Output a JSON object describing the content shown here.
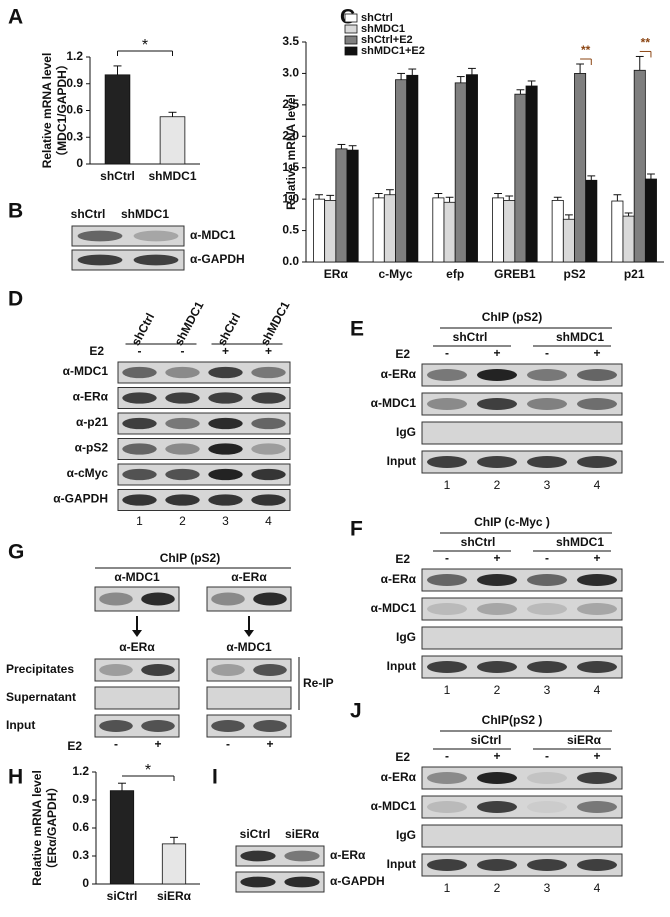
{
  "panel_letters": [
    "A",
    "B",
    "C",
    "D",
    "E",
    "F",
    "G",
    "H",
    "I",
    "J"
  ],
  "chart_data": [
    {
      "type": "bar",
      "y_label": [
        "Relative mRNA level",
        "（MDC1/GAPDH）"
      ],
      "categories": [
        "shCtrl",
        "shMDC1"
      ],
      "values": [
        1.0,
        0.53
      ],
      "errors": [
        0.1,
        0.05
      ],
      "colors": [
        "#222222",
        "#e6e6e6"
      ],
      "ylim": [
        0,
        1.2
      ],
      "yticks": [
        0,
        0.3,
        0.6,
        0.9,
        1.2
      ],
      "annotations": [
        "*"
      ]
    },
    {
      "type": "bar",
      "y_label": [
        "Relative mRNA level"
      ],
      "categories": [
        "ERα",
        "c-Myc",
        "efp",
        "GREB1",
        "pS2",
        "p21"
      ],
      "series": [
        {
          "name": "shCtrl",
          "color": "#ffffff",
          "values": [
            1.0,
            1.02,
            1.02,
            1.02,
            0.98,
            0.97
          ],
          "errors": [
            0.07,
            0.07,
            0.07,
            0.07,
            0.05,
            0.1
          ]
        },
        {
          "name": "shMDC1",
          "color": "#d9d9d9",
          "values": [
            0.98,
            1.07,
            0.95,
            0.98,
            0.68,
            0.73
          ],
          "errors": [
            0.08,
            0.08,
            0.08,
            0.07,
            0.07,
            0.05
          ]
        },
        {
          "name": "shCtrl+E2",
          "color": "#7f7f7f",
          "values": [
            1.8,
            2.9,
            2.85,
            2.67,
            3.0,
            3.05
          ],
          "errors": [
            0.07,
            0.1,
            0.1,
            0.07,
            0.15,
            0.22
          ]
        },
        {
          "name": "shMDC1+E2",
          "color": "#111111",
          "values": [
            1.78,
            2.97,
            2.98,
            2.8,
            1.3,
            1.32
          ],
          "errors": [
            0.07,
            0.1,
            0.1,
            0.08,
            0.07,
            0.08
          ]
        }
      ],
      "ylim": [
        0,
        3.5
      ],
      "yticks": [
        {
          "value": 0,
          "label": "0.0"
        },
        0.5,
        {
          "value": 1,
          "label": "1.0"
        },
        1.5,
        {
          "value": 2,
          "label": "2.0"
        },
        2.5,
        {
          "value": 3,
          "label": "3.0"
        },
        3.5
      ],
      "annotations": [
        "**",
        "**"
      ]
    },
    {
      "type": "bar",
      "y_label": [
        "Relative mRNA level",
        "（ERα/GAPDH）"
      ],
      "categories": [
        "siCtrl",
        "siERα"
      ],
      "values": [
        1.0,
        0.43
      ],
      "errors": [
        0.08,
        0.07
      ],
      "colors": [
        "#222222",
        "#e6e6e6"
      ],
      "ylim": [
        0,
        1.2
      ],
      "yticks": [
        0,
        0.3,
        0.6,
        0.9,
        1.2
      ],
      "annotations": [
        "*"
      ]
    }
  ],
  "blots": {
    "B": {
      "columns": [
        "shCtrl",
        "shMDC1"
      ],
      "rows": [
        "α-MDC1",
        "α-GAPDH"
      ]
    },
    "D": {
      "columns": [
        "shCtrl",
        "shMDC1",
        "shCtrl",
        "shMDC1"
      ],
      "e2_label": "E2",
      "e2": [
        "-",
        "-",
        "+",
        "+"
      ],
      "rows": [
        "α-MDC1",
        "α-ERα",
        "α-p21",
        "α-pS2",
        "α-cMyc",
        "α-GAPDH"
      ],
      "lanes": [
        1,
        2,
        3,
        4
      ]
    },
    "E": {
      "title": "ChIP (pS2)",
      "groups": [
        "shCtrl",
        "shMDC1"
      ],
      "e2_label": "E2",
      "e2": [
        "-",
        "+",
        "-",
        "+"
      ],
      "rows": [
        "α-ERα",
        "α-MDC1",
        "IgG",
        "Input"
      ],
      "lanes": [
        1,
        2,
        3,
        4
      ]
    },
    "F": {
      "title": "ChIP (c-Myc )",
      "groups": [
        "shCtrl",
        "shMDC1"
      ],
      "e2_label": "E2",
      "e2": [
        "-",
        "+",
        "-",
        "+"
      ],
      "rows": [
        "α-ERα",
        "α-MDC1",
        "IgG",
        "Input"
      ],
      "lanes": [
        1,
        2,
        3,
        4
      ]
    },
    "G": {
      "title": "ChIP (pS2)",
      "ip": [
        "α-MDC1",
        "α-ERα"
      ],
      "reip": [
        "α-ERα",
        "α-MDC1"
      ],
      "rows": [
        "Precipitates",
        "Supernatant",
        "Input"
      ],
      "bracket": "Re-IP",
      "e2_label": "E2",
      "e2": [
        "-",
        "+",
        "-",
        "+"
      ]
    },
    "I": {
      "columns": [
        "siCtrl",
        "siERα"
      ],
      "rows": [
        "α-ERα",
        "α-GAPDH"
      ]
    },
    "J": {
      "title": "ChIP(pS2 )",
      "groups": [
        "siCtrl",
        "siERα"
      ],
      "e2_label": "E2",
      "e2": [
        "-",
        "+",
        "-",
        "+"
      ],
      "rows": [
        "α-ERα",
        "α-MDC1",
        "IgG",
        "Input"
      ],
      "lanes": [
        1,
        2,
        3,
        4
      ]
    }
  }
}
